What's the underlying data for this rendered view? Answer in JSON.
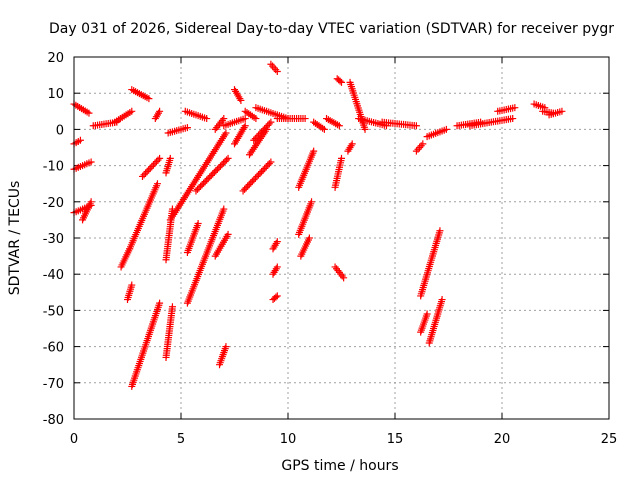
{
  "chart_data": {
    "type": "scatter",
    "title": "Day 031 of 2026, Sidereal Day-to-day VTEC variation (SDTVAR) for receiver pygr",
    "xlabel": "GPS time / hours",
    "ylabel": "SDTVAR / TECUs",
    "xlim": [
      0,
      25
    ],
    "ylim": [
      -80,
      20
    ],
    "xticks": [
      0,
      5,
      10,
      15,
      20,
      25
    ],
    "yticks": [
      -80,
      -70,
      -60,
      -50,
      -40,
      -30,
      -20,
      -10,
      0,
      10,
      20
    ],
    "grid": true,
    "marker": "+",
    "marker_color": "#ff0000",
    "tracks": [
      {
        "name": "track-01",
        "x": [
          0.0,
          0.7
        ],
        "y": [
          7,
          4.5
        ]
      },
      {
        "name": "track-02",
        "x": [
          0.0,
          0.3
        ],
        "y": [
          -4,
          -3
        ]
      },
      {
        "name": "track-03",
        "x": [
          0.0,
          0.8
        ],
        "y": [
          -11,
          -9
        ]
      },
      {
        "name": "track-04",
        "x": [
          0.0,
          0.8
        ],
        "y": [
          -23,
          -21
        ]
      },
      {
        "name": "track-05",
        "x": [
          0.4,
          0.8
        ],
        "y": [
          -25,
          -20
        ]
      },
      {
        "name": "track-06",
        "x": [
          0.9,
          2.0
        ],
        "y": [
          1,
          2
        ]
      },
      {
        "name": "track-07",
        "x": [
          1.9,
          2.7
        ],
        "y": [
          2,
          5
        ]
      },
      {
        "name": "track-08",
        "x": [
          2.7,
          3.5
        ],
        "y": [
          11,
          8.5
        ]
      },
      {
        "name": "track-09",
        "x": [
          2.2,
          2.6
        ],
        "y": [
          -38,
          -33
        ]
      },
      {
        "name": "track-10",
        "x": [
          2.6,
          3.9
        ],
        "y": [
          -33,
          -15
        ]
      },
      {
        "name": "track-11",
        "x": [
          2.5,
          2.7
        ],
        "y": [
          -47,
          -43
        ]
      },
      {
        "name": "track-12",
        "x": [
          2.7,
          4.0
        ],
        "y": [
          -71,
          -48
        ]
      },
      {
        "name": "track-13",
        "x": [
          3.2,
          4.0
        ],
        "y": [
          -13,
          -8
        ]
      },
      {
        "name": "track-14",
        "x": [
          3.8,
          4.0
        ],
        "y": [
          3,
          5
        ]
      },
      {
        "name": "track-15",
        "x": [
          4.3,
          4.6
        ],
        "y": [
          -63,
          -49
        ]
      },
      {
        "name": "track-16",
        "x": [
          4.3,
          4.5
        ],
        "y": [
          -12,
          -8
        ]
      },
      {
        "name": "track-17",
        "x": [
          4.3,
          4.6
        ],
        "y": [
          -36,
          -22
        ]
      },
      {
        "name": "track-18",
        "x": [
          4.5,
          7.1
        ],
        "y": [
          -25,
          -1
        ]
      },
      {
        "name": "track-19",
        "x": [
          4.4,
          5.3
        ],
        "y": [
          -1,
          0.5
        ]
      },
      {
        "name": "track-20",
        "x": [
          5.2,
          6.2
        ],
        "y": [
          5,
          3
        ]
      },
      {
        "name": "track-21",
        "x": [
          5.3,
          5.8
        ],
        "y": [
          -34,
          -26
        ]
      },
      {
        "name": "track-22",
        "x": [
          5.7,
          7.2
        ],
        "y": [
          -17,
          -8
        ]
      },
      {
        "name": "track-23",
        "x": [
          5.3,
          7.0
        ],
        "y": [
          -48,
          -22
        ]
      },
      {
        "name": "track-24",
        "x": [
          6.6,
          7.2
        ],
        "y": [
          -35,
          -29
        ]
      },
      {
        "name": "track-25",
        "x": [
          6.8,
          7.1
        ],
        "y": [
          -65,
          -60
        ]
      },
      {
        "name": "track-26",
        "x": [
          6.6,
          7.0
        ],
        "y": [
          0,
          3
        ]
      },
      {
        "name": "track-27",
        "x": [
          7.0,
          8.0
        ],
        "y": [
          1,
          3
        ]
      },
      {
        "name": "track-28",
        "x": [
          7.5,
          7.8
        ],
        "y": [
          11,
          8
        ]
      },
      {
        "name": "track-29",
        "x": [
          7.5,
          8.0
        ],
        "y": [
          -4,
          1
        ]
      },
      {
        "name": "track-30",
        "x": [
          8.0,
          8.5
        ],
        "y": [
          5,
          3
        ]
      },
      {
        "name": "track-31",
        "x": [
          8.2,
          9.0
        ],
        "y": [
          -7,
          0
        ]
      },
      {
        "name": "track-32",
        "x": [
          7.9,
          9.2
        ],
        "y": [
          -17,
          -9
        ]
      },
      {
        "name": "track-33",
        "x": [
          8.4,
          9.2
        ],
        "y": [
          -3,
          2
        ]
      },
      {
        "name": "track-34",
        "x": [
          8.5,
          10.0
        ],
        "y": [
          6,
          3
        ]
      },
      {
        "name": "track-35",
        "x": [
          9.3,
          9.5
        ],
        "y": [
          -33,
          -31
        ]
      },
      {
        "name": "track-36",
        "x": [
          9.3,
          9.5
        ],
        "y": [
          -40,
          -38
        ]
      },
      {
        "name": "track-37",
        "x": [
          9.3,
          9.5
        ],
        "y": [
          -47,
          -46
        ]
      },
      {
        "name": "track-38",
        "x": [
          9.2,
          9.5
        ],
        "y": [
          18,
          16
        ]
      },
      {
        "name": "track-39",
        "x": [
          9.5,
          10.8
        ],
        "y": [
          3,
          3
        ]
      },
      {
        "name": "track-40",
        "x": [
          10.5,
          11.2
        ],
        "y": [
          -16,
          -6
        ]
      },
      {
        "name": "track-41",
        "x": [
          10.5,
          11.1
        ],
        "y": [
          -29,
          -20
        ]
      },
      {
        "name": "track-42",
        "x": [
          10.6,
          11.0
        ],
        "y": [
          -35,
          -30
        ]
      },
      {
        "name": "track-43",
        "x": [
          11.2,
          11.7
        ],
        "y": [
          2,
          0
        ]
      },
      {
        "name": "track-44",
        "x": [
          11.8,
          12.4
        ],
        "y": [
          3,
          1
        ]
      },
      {
        "name": "track-45",
        "x": [
          12.2,
          12.5
        ],
        "y": [
          -16,
          -8
        ]
      },
      {
        "name": "track-46",
        "x": [
          12.2,
          12.6
        ],
        "y": [
          -38,
          -41
        ]
      },
      {
        "name": "track-47",
        "x": [
          12.3,
          12.5
        ],
        "y": [
          14,
          13
        ]
      },
      {
        "name": "track-48",
        "x": [
          12.9,
          13.6
        ],
        "y": [
          13,
          0
        ]
      },
      {
        "name": "track-49",
        "x": [
          12.8,
          13.0
        ],
        "y": [
          -6,
          -4
        ]
      },
      {
        "name": "track-50",
        "x": [
          13.3,
          14.6
        ],
        "y": [
          3,
          1
        ]
      },
      {
        "name": "track-51",
        "x": [
          14.4,
          16.0
        ],
        "y": [
          2,
          1
        ]
      },
      {
        "name": "track-52",
        "x": [
          16.0,
          16.3
        ],
        "y": [
          -6,
          -4
        ]
      },
      {
        "name": "track-53",
        "x": [
          16.2,
          17.1
        ],
        "y": [
          -46,
          -28
        ]
      },
      {
        "name": "track-54",
        "x": [
          16.2,
          16.5
        ],
        "y": [
          -56,
          -51
        ]
      },
      {
        "name": "track-55",
        "x": [
          16.6,
          17.2
        ],
        "y": [
          -59,
          -47
        ]
      },
      {
        "name": "track-56",
        "x": [
          16.5,
          17.4
        ],
        "y": [
          -2,
          0
        ]
      },
      {
        "name": "track-57",
        "x": [
          17.9,
          19.0
        ],
        "y": [
          1,
          2
        ]
      },
      {
        "name": "track-58",
        "x": [
          18.5,
          20.5
        ],
        "y": [
          1,
          3
        ]
      },
      {
        "name": "track-59",
        "x": [
          19.8,
          20.6
        ],
        "y": [
          5,
          6
        ]
      },
      {
        "name": "track-60",
        "x": [
          21.5,
          22.0
        ],
        "y": [
          7,
          6
        ]
      },
      {
        "name": "track-61",
        "x": [
          21.9,
          22.4
        ],
        "y": [
          5,
          4.5
        ]
      },
      {
        "name": "track-62",
        "x": [
          22.2,
          22.8
        ],
        "y": [
          4,
          5
        ]
      }
    ]
  }
}
